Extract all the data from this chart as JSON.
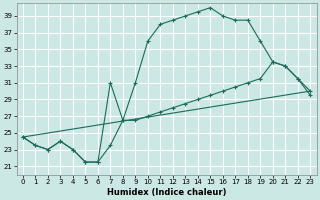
{
  "xlabel": "Humidex (Indice chaleur)",
  "bg_color": "#cce8e4",
  "grid_color": "#ffffff",
  "line_color": "#1a6b5a",
  "xlim": [
    -0.5,
    23.5
  ],
  "ylim": [
    20.0,
    40.5
  ],
  "yticks": [
    21,
    23,
    25,
    27,
    29,
    31,
    33,
    35,
    37,
    39
  ],
  "xticks": [
    0,
    1,
    2,
    3,
    4,
    5,
    6,
    7,
    8,
    9,
    10,
    11,
    12,
    13,
    14,
    15,
    16,
    17,
    18,
    19,
    20,
    21,
    22,
    23
  ],
  "curve1_x": [
    0,
    1,
    2,
    3,
    4,
    5,
    6,
    7,
    8,
    9,
    10,
    11,
    12,
    13,
    14,
    15,
    16,
    17,
    18,
    19,
    20,
    21,
    22,
    23
  ],
  "curve1_y": [
    24.5,
    23.5,
    23.0,
    24.0,
    23.0,
    21.5,
    21.5,
    23.5,
    26.5,
    31.0,
    36.0,
    38.0,
    38.5,
    39.0,
    39.5,
    40.0,
    39.0,
    38.5,
    38.5,
    36.0,
    33.5,
    33.0,
    31.5,
    29.5
  ],
  "curve2_x": [
    0,
    1,
    2,
    3,
    4,
    5,
    6,
    7,
    8,
    9,
    10,
    11,
    12,
    13,
    14,
    15,
    16,
    17,
    18,
    19,
    20,
    21,
    22,
    23
  ],
  "curve2_y": [
    24.5,
    23.5,
    23.0,
    24.0,
    23.0,
    21.5,
    21.5,
    31.0,
    26.5,
    26.5,
    27.0,
    27.5,
    28.0,
    28.5,
    29.0,
    29.5,
    30.0,
    30.5,
    31.0,
    31.5,
    33.5,
    33.0,
    31.5,
    30.0
  ],
  "curve3_x": [
    0,
    23
  ],
  "curve3_y": [
    24.5,
    30.0
  ]
}
